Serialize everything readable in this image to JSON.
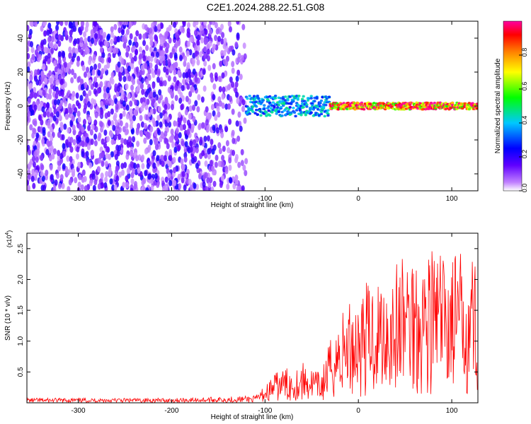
{
  "title": "C2E1.2024.288.22.51.G08",
  "chart_data": [
    {
      "type": "heatmap",
      "title": "C2E1.2024.288.22.51.G08",
      "xlabel": "Height of straight line (km)",
      "ylabel": "Frequency (Hz)",
      "xlim": [
        -355,
        128
      ],
      "ylim": [
        -50,
        50
      ],
      "x_ticks": [
        -300,
        -200,
        -100,
        0,
        100
      ],
      "y_ticks": [
        -40,
        -20,
        0,
        20,
        40
      ],
      "colorbar": {
        "label": "Normalized spectral amplitude",
        "range": [
          0,
          1
        ],
        "ticks": [
          "0.0",
          "0.2",
          "0.4",
          "0.6",
          "0.8"
        ],
        "colors": [
          "#ffffff",
          "#8000ff",
          "#0000ff",
          "#00ffff",
          "#00ff00",
          "#ffff00",
          "#ff8000",
          "#ff0000",
          "#ff00ff"
        ]
      },
      "regions": [
        {
          "description": "broadband noise",
          "x_range": [
            -355,
            -120
          ],
          "freq_range": [
            -50,
            50
          ],
          "amplitude": 0.05
        },
        {
          "description": "signal band",
          "x_range": [
            -120,
            -30
          ],
          "center_freq": 0,
          "half_width": 6,
          "amplitude": 0.4
        },
        {
          "description": "strong narrow carrier",
          "x_range": [
            -30,
            128
          ],
          "center_freq": 0,
          "half_width": 2,
          "amplitude": 0.9
        }
      ],
      "grid": false
    },
    {
      "type": "line",
      "xlabel": "Height of straight line (km)",
      "ylabel": "SNR (10 * v/v)",
      "y_multiplier": "(x10",
      "y_multiplier_exp": "4",
      "xlim": [
        -355,
        128
      ],
      "ylim": [
        0,
        2.75
      ],
      "x_ticks": [
        -300,
        -200,
        -100,
        0,
        100
      ],
      "y_ticks": [
        0.5,
        1.0,
        1.5,
        2.0,
        2.5
      ],
      "y_tick_labels": [
        "0.5",
        "1.0",
        "1.5",
        "2.0",
        "2.5"
      ],
      "series": [
        {
          "color": "#ff0000",
          "x": [
            -355,
            -300,
            -250,
            -200,
            -150,
            -110,
            -100,
            -90,
            -80,
            -70,
            -60,
            -50,
            -40,
            -30,
            -20,
            -10,
            0,
            10,
            20,
            30,
            40,
            50,
            60,
            70,
            80,
            90,
            100,
            110,
            120,
            128
          ],
          "y": [
            0.04,
            0.04,
            0.04,
            0.04,
            0.05,
            0.06,
            0.15,
            0.25,
            0.3,
            0.28,
            0.35,
            0.3,
            0.25,
            0.55,
            0.75,
            0.9,
            0.95,
            1.05,
            1.1,
            1.15,
            1.2,
            1.3,
            1.35,
            1.3,
            1.35,
            1.3,
            1.35,
            1.3,
            1.35,
            1.3
          ]
        }
      ],
      "grid": false
    }
  ]
}
